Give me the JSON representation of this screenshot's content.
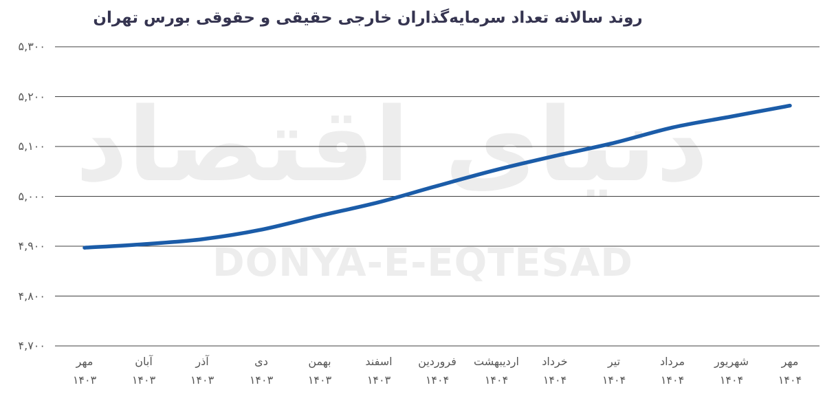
{
  "title": "روند سالانه تعداد سرمایه‌گذاران خارجی حقیقی و حقوقی بورس تهران",
  "watermark": {
    "fa": "دنیای اقتصاد",
    "en": "DONYA-E-EQTESAD"
  },
  "colors": {
    "line": "#1b5ca8",
    "grid": "#404040",
    "title": "#353450",
    "tick_label": "#575757",
    "watermark": "#ededed"
  },
  "chart_data": {
    "type": "line",
    "title": "روند سالانه تعداد سرمایه‌گذاران خارجی حقیقی و حقوقی بورس تهران",
    "categories": [
      "مهر ۱۴۰۳",
      "آبان ۱۴۰۳",
      "آذر ۱۴۰۳",
      "دی ۱۴۰۳",
      "بهمن ۱۴۰۳",
      "اسفند ۱۴۰۳",
      "فروردین ۱۴۰۴",
      "اردیبهشت ۱۴۰۴",
      "خرداد ۱۴۰۴",
      "تیر ۱۴۰۴",
      "مرداد ۱۴۰۴",
      "شهریور ۱۴۰۴",
      "مهر ۱۴۰۴"
    ],
    "x_tick_labels": [
      {
        "month": "مهر",
        "year": "۱۴۰۳"
      },
      {
        "month": "آبان",
        "year": "۱۴۰۳"
      },
      {
        "month": "آذر",
        "year": "۱۴۰۳"
      },
      {
        "month": "دی",
        "year": "۱۴۰۳"
      },
      {
        "month": "بهمن",
        "year": "۱۴۰۳"
      },
      {
        "month": "اسفند",
        "year": "۱۴۰۳"
      },
      {
        "month": "فروردین",
        "year": "۱۴۰۴"
      },
      {
        "month": "اردیبهشت",
        "year": "۱۴۰۴"
      },
      {
        "month": "خرداد",
        "year": "۱۴۰۴"
      },
      {
        "month": "تیر",
        "year": "۱۴۰۴"
      },
      {
        "month": "مرداد",
        "year": "۱۴۰۴"
      },
      {
        "month": "شهریور",
        "year": "۱۴۰۴"
      },
      {
        "month": "مهر",
        "year": "۱۴۰۴"
      }
    ],
    "values": [
      4897,
      4904,
      4914,
      4933,
      4961,
      4988,
      5021,
      5053,
      5081,
      5107,
      5138,
      5160,
      5182
    ],
    "yticks": {
      "labels": [
        "۵,۳۰۰",
        "۵,۲۰۰",
        "۵,۱۰۰",
        "۵,۰۰۰",
        "۴,۹۰۰",
        "۴,۸۰۰",
        "۴,۷۰۰"
      ],
      "values": [
        5300,
        5200,
        5100,
        5000,
        4900,
        4800,
        4700
      ]
    },
    "ylim": [
      4700,
      5300
    ],
    "xlabel": "",
    "ylabel": "",
    "grid": true,
    "legend": false
  }
}
